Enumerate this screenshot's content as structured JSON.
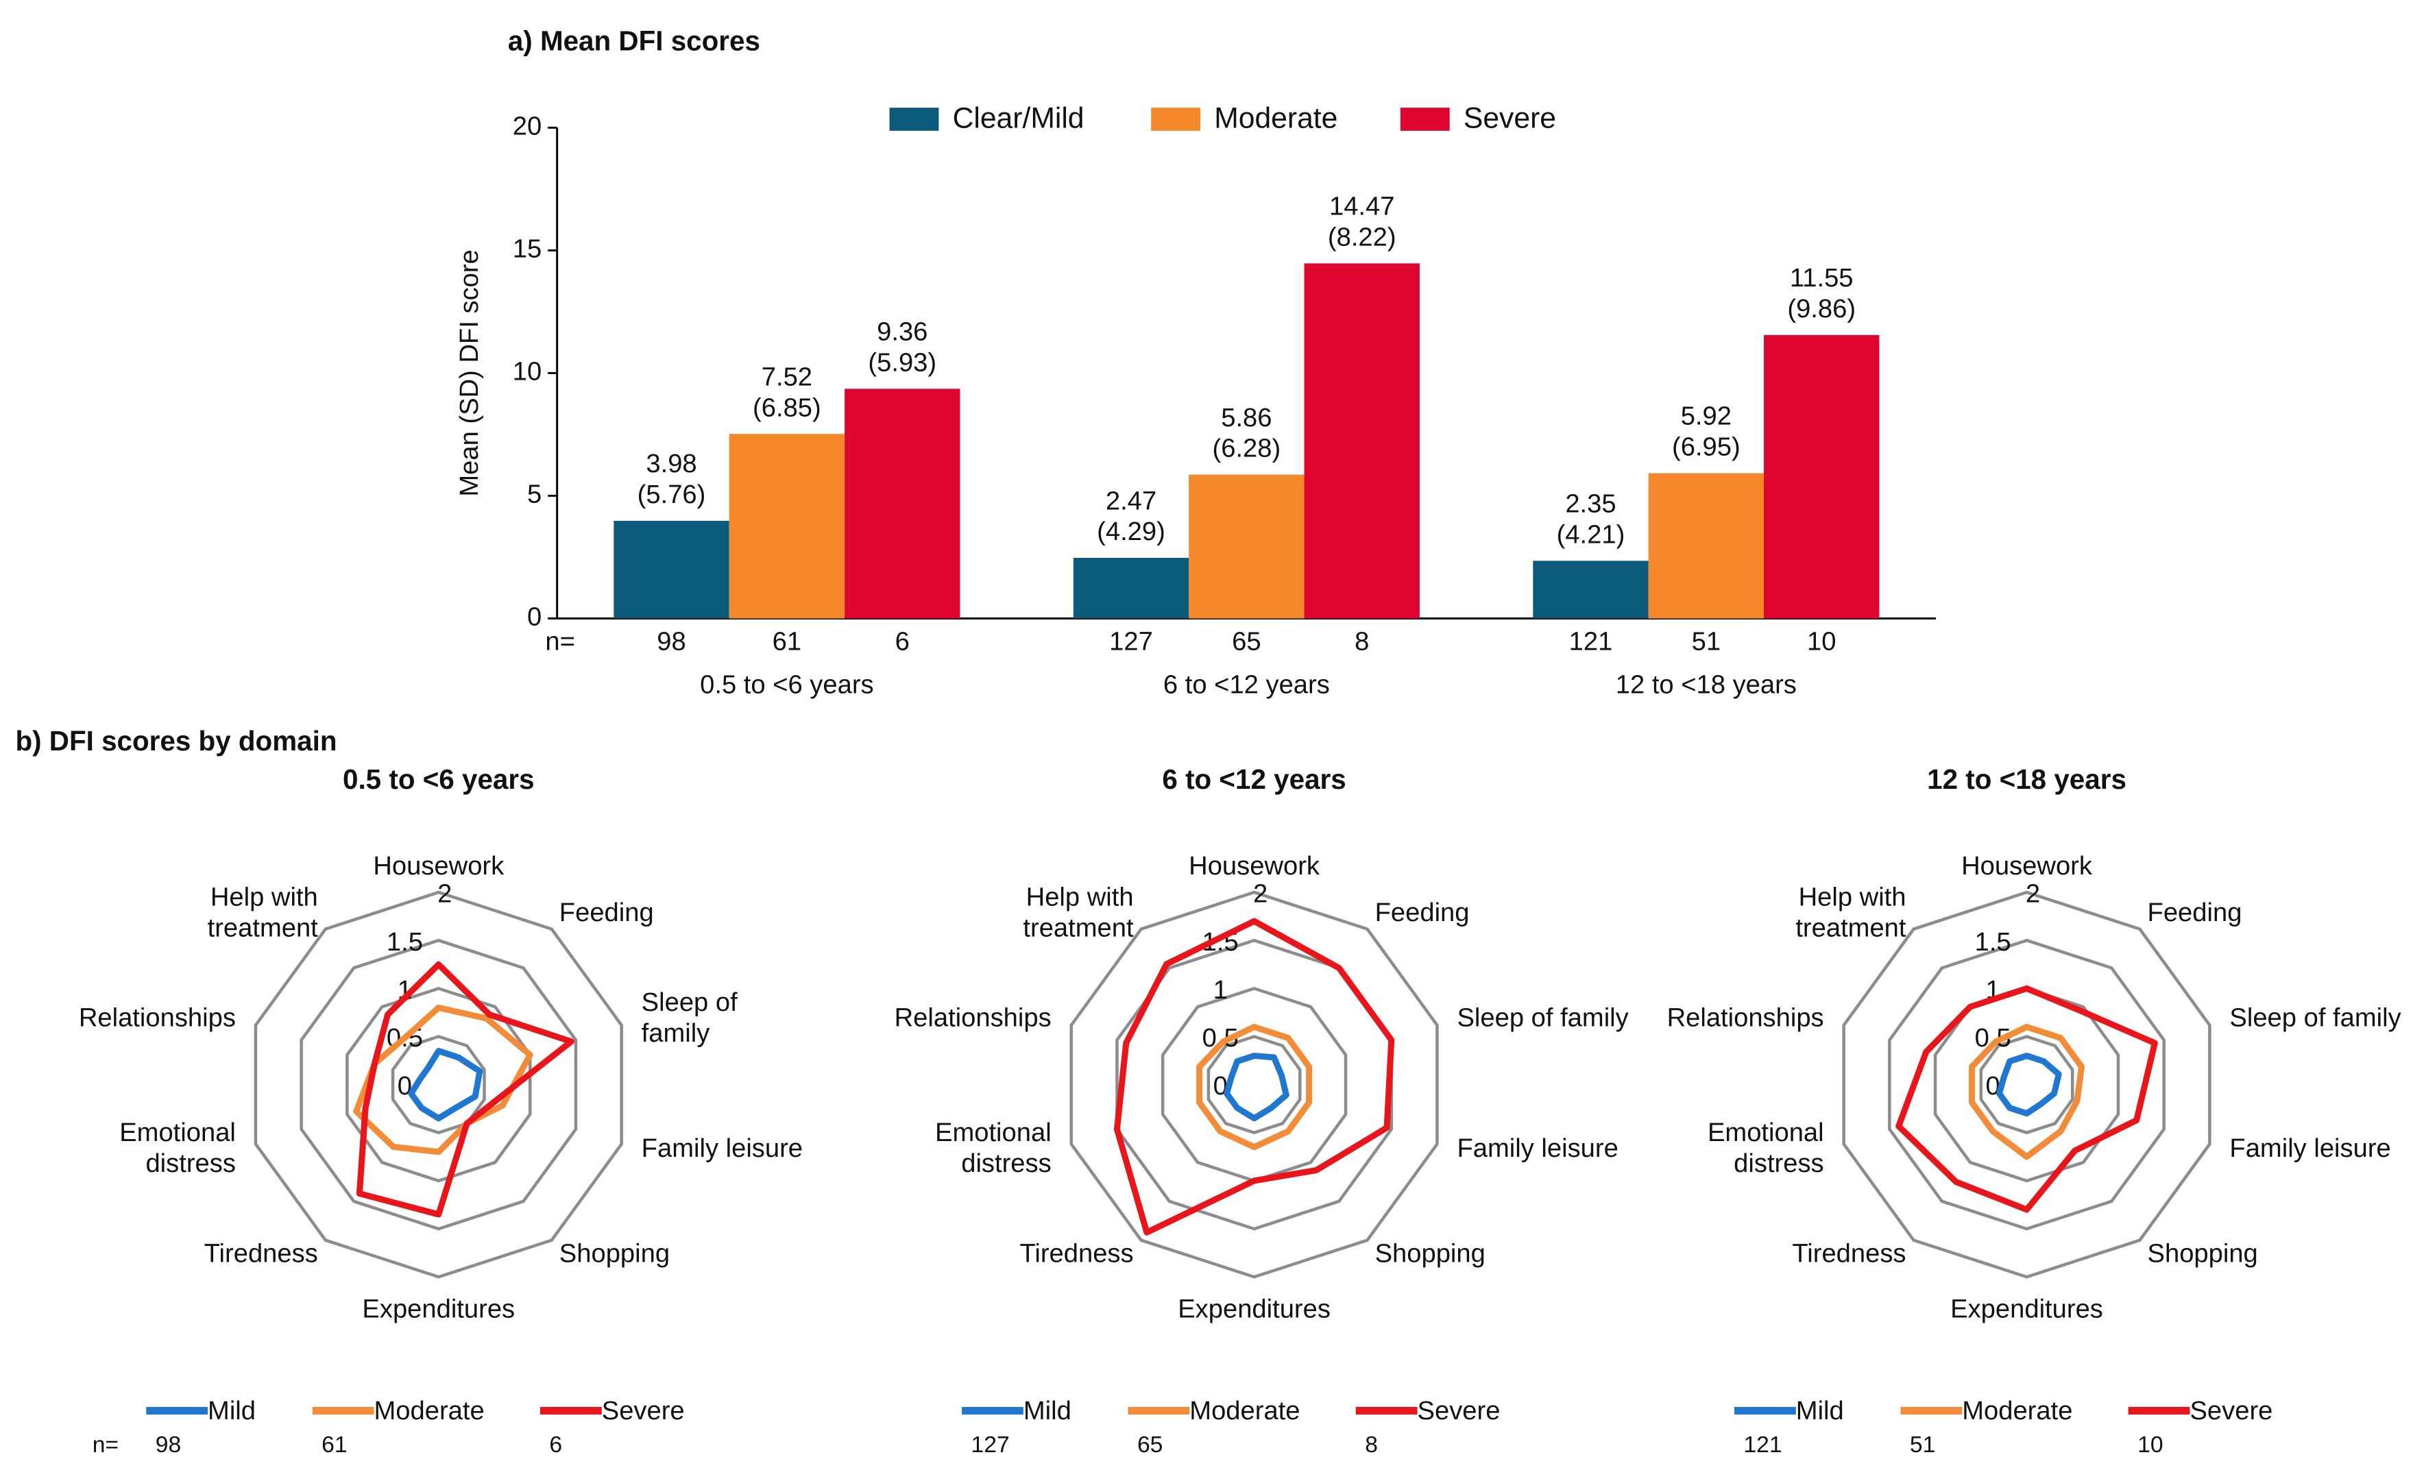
{
  "panel_b_title": "b) DFI scores by domain",
  "chart_data": [
    {
      "type": "bar",
      "title": "a) Mean DFI scores",
      "y_label": "Mean (SD) DFI score",
      "categories": [
        "0.5 to <6 years",
        "6 to <12 years",
        "12 to <18 years"
      ],
      "n_label": "n=",
      "ylim": [
        0,
        20
      ],
      "yticks": [
        0,
        5,
        10,
        15,
        20
      ],
      "series": [
        {
          "name": "Clear/Mild",
          "color": "#0b5a7a",
          "values": [
            3.98,
            2.47,
            2.35
          ],
          "sd": [
            5.76,
            4.29,
            4.21
          ],
          "n": [
            98,
            127,
            121
          ]
        },
        {
          "name": "Moderate",
          "color": "#f5882a",
          "values": [
            7.52,
            5.86,
            5.92
          ],
          "sd": [
            6.85,
            6.28,
            6.95
          ],
          "n": [
            61,
            65,
            51
          ]
        },
        {
          "name": "Severe",
          "color": "#de0530",
          "values": [
            9.36,
            14.47,
            11.55
          ],
          "sd": [
            5.93,
            8.22,
            9.86
          ],
          "n": [
            6,
            8,
            10
          ]
        }
      ]
    },
    {
      "type": "radar",
      "title": "0.5 to <6 years",
      "categories": [
        "Housework",
        "Feeding",
        "Sleep of\nfamily",
        "Family leisure",
        "Shopping",
        "Expenditures",
        "Tiredness",
        "Emotional\ndistress",
        "Relationships",
        "Help with\ntreatment"
      ],
      "rlim": [
        0,
        2
      ],
      "rticks": [
        0,
        0.5,
        1,
        1.5,
        2
      ],
      "n_label": "n=",
      "series": [
        {
          "name": "Mild",
          "color": "#1f77d0",
          "n": 98,
          "values": [
            0.35,
            0.35,
            0.45,
            0.4,
            0.3,
            0.35,
            0.3,
            0.3,
            0.2,
            0.2
          ]
        },
        {
          "name": "Moderate",
          "color": "#f28c38",
          "n": 61,
          "values": [
            0.8,
            0.85,
            1.0,
            0.7,
            0.5,
            0.7,
            0.8,
            0.9,
            0.7,
            0.6
          ]
        },
        {
          "name": "Severe",
          "color": "#e8151b",
          "n": 6,
          "values": [
            1.25,
            0.9,
            1.45,
            0.6,
            0.5,
            1.35,
            1.4,
            0.8,
            0.7,
            0.9
          ]
        }
      ]
    },
    {
      "type": "radar",
      "title": "6 to <12 years",
      "categories": [
        "Housework",
        "Feeding",
        "Sleep of family",
        "Family leisure",
        "Shopping",
        "Expenditures",
        "Tiredness",
        "Emotional\ndistress",
        "Relationships",
        "Help with\ntreatment"
      ],
      "rlim": [
        0,
        2
      ],
      "rticks": [
        0,
        0.5,
        1,
        1.5,
        2
      ],
      "series": [
        {
          "name": "Mild",
          "color": "#1f77d0",
          "n": 127,
          "values": [
            0.3,
            0.35,
            0.3,
            0.35,
            0.3,
            0.35,
            0.3,
            0.3,
            0.25,
            0.3
          ]
        },
        {
          "name": "Moderate",
          "color": "#f28c38",
          "n": 65,
          "values": [
            0.6,
            0.6,
            0.6,
            0.6,
            0.6,
            0.65,
            0.6,
            0.6,
            0.6,
            0.55
          ]
        },
        {
          "name": "Severe",
          "color": "#e8151b",
          "n": 8,
          "values": [
            1.7,
            1.5,
            1.5,
            1.45,
            1.1,
            1.0,
            1.9,
            1.5,
            1.4,
            1.55
          ]
        }
      ]
    },
    {
      "type": "radar",
      "title": "12 to <18 years",
      "categories": [
        "Housework",
        "Feeding",
        "Sleep of family",
        "Family leisure",
        "Shopping",
        "Expenditures",
        "Tiredness",
        "Emotional\ndistress",
        "Relationships",
        "Help with\ntreatment"
      ],
      "rlim": [
        0,
        2
      ],
      "rticks": [
        0,
        0.5,
        1,
        1.5,
        2
      ],
      "series": [
        {
          "name": "Mild",
          "color": "#1f77d0",
          "n": 121,
          "values": [
            0.3,
            0.3,
            0.35,
            0.3,
            0.25,
            0.3,
            0.3,
            0.3,
            0.25,
            0.3
          ]
        },
        {
          "name": "Moderate",
          "color": "#f28c38",
          "n": 51,
          "values": [
            0.6,
            0.6,
            0.6,
            0.55,
            0.6,
            0.75,
            0.6,
            0.6,
            0.6,
            0.55
          ]
        },
        {
          "name": "Severe",
          "color": "#e8151b",
          "n": 10,
          "values": [
            1.0,
            0.95,
            1.4,
            1.2,
            0.85,
            1.3,
            1.25,
            1.4,
            1.1,
            1.0
          ]
        }
      ]
    }
  ]
}
